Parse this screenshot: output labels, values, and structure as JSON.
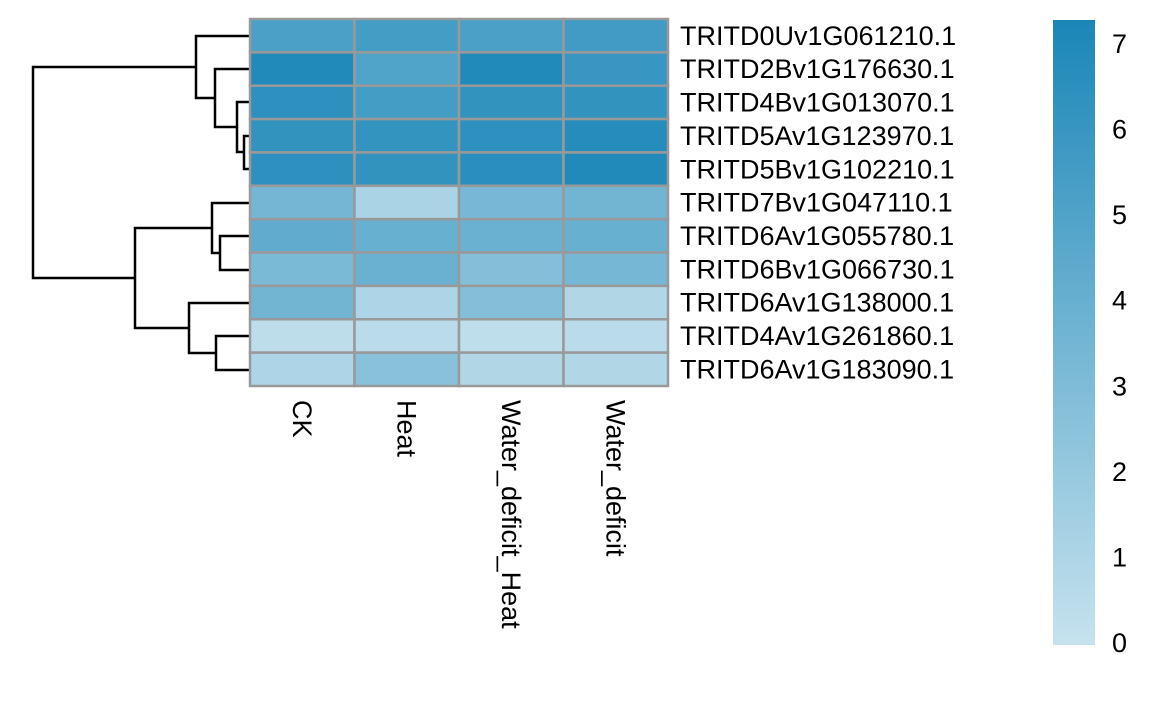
{
  "chart_data": {
    "type": "heatmap",
    "columns": [
      "CK",
      "Heat",
      "Water_deficit_Heat",
      "Water_deficit"
    ],
    "rows": [
      "TRITD0Uv1G061210.1",
      "TRITD2Bv1G176630.1",
      "TRITD4Bv1G013070.1",
      "TRITD5Av1G123970.1",
      "TRITD5Bv1G102210.1",
      "TRITD7Bv1G047110.1",
      "TRITD6Av1G055780.1",
      "TRITD6Bv1G066730.1",
      "TRITD6Av1G138000.1",
      "TRITD4Av1G261860.1",
      "TRITD6Av1G183090.1"
    ],
    "values": [
      [
        5.2,
        5.5,
        5.2,
        5.6
      ],
      [
        7.0,
        5.0,
        7.0,
        6.0
      ],
      [
        6.5,
        5.5,
        6.3,
        6.3
      ],
      [
        6.3,
        6.2,
        6.5,
        6.8
      ],
      [
        6.5,
        6.3,
        6.6,
        7.0
      ],
      [
        3.5,
        1.2,
        3.3,
        3.6
      ],
      [
        4.3,
        4.0,
        3.9,
        4.0
      ],
      [
        3.2,
        3.9,
        2.8,
        3.4
      ],
      [
        3.6,
        1.0,
        2.8,
        0.9
      ],
      [
        0.4,
        0.5,
        0.3,
        0.5
      ],
      [
        1.0,
        2.6,
        0.9,
        0.9
      ]
    ],
    "colors": [
      "#c6e2ee",
      "#1a86b8"
    ],
    "clim": [
      0,
      7.3
    ],
    "cticks": [
      0,
      1,
      2,
      3,
      4,
      5,
      6,
      7
    ]
  }
}
